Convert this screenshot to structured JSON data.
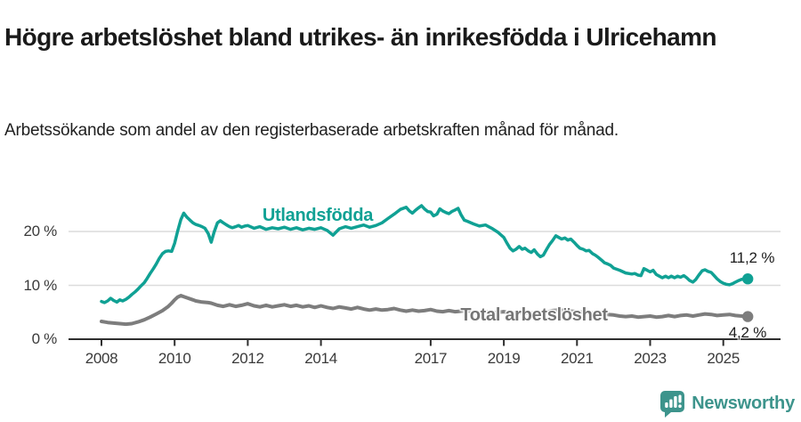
{
  "title": "Högre arbetslöshet bland utrikes- än inrikesfödda i Ulricehamn",
  "subtitle": "Arbetssökande som andel av den registerbaserade arbetskraften månad för månad.",
  "branding": {
    "logo_text": "Newsworthy",
    "logo_color": "#3d948c"
  },
  "chart_data": {
    "type": "line",
    "unit": "%",
    "grid": "horizontal-only",
    "xlim": [
      2007.1,
      2026.4
    ],
    "ylim": [
      0,
      27
    ],
    "x_ticks": [
      2008,
      2010,
      2012,
      2014,
      2017,
      2019,
      2021,
      2023,
      2025
    ],
    "x_tick_labels": [
      "2008",
      "2010",
      "2012",
      "2014",
      "2017",
      "2019",
      "2021",
      "2023",
      "2025"
    ],
    "y_ticks": [
      0,
      10,
      20
    ],
    "y_tick_labels": [
      "0 %",
      "10 %",
      "20 %"
    ],
    "axis_color": "#2e2e2e",
    "gridline_color": "#dcdcdc",
    "series": [
      {
        "name": "Utlandsfödda",
        "color": "#10a194",
        "line_width": 3.5,
        "end_value": 11.2,
        "end_label": "11,2 %",
        "points": [
          [
            2008.0,
            7.0
          ],
          [
            2008.08,
            6.8
          ],
          [
            2008.17,
            7.1
          ],
          [
            2008.25,
            7.6
          ],
          [
            2008.33,
            7.2
          ],
          [
            2008.42,
            6.9
          ],
          [
            2008.5,
            7.3
          ],
          [
            2008.58,
            7.1
          ],
          [
            2008.67,
            7.4
          ],
          [
            2008.75,
            7.8
          ],
          [
            2008.83,
            8.3
          ],
          [
            2008.92,
            8.8
          ],
          [
            2009.0,
            9.3
          ],
          [
            2009.08,
            9.9
          ],
          [
            2009.17,
            10.5
          ],
          [
            2009.25,
            11.3
          ],
          [
            2009.33,
            12.2
          ],
          [
            2009.42,
            13.1
          ],
          [
            2009.5,
            14.0
          ],
          [
            2009.58,
            15.0
          ],
          [
            2009.67,
            15.9
          ],
          [
            2009.75,
            16.3
          ],
          [
            2009.83,
            16.4
          ],
          [
            2009.92,
            16.3
          ],
          [
            2010.0,
            17.8
          ],
          [
            2010.08,
            20.0
          ],
          [
            2010.17,
            22.2
          ],
          [
            2010.25,
            23.4
          ],
          [
            2010.33,
            22.7
          ],
          [
            2010.42,
            22.1
          ],
          [
            2010.5,
            21.6
          ],
          [
            2010.58,
            21.3
          ],
          [
            2010.67,
            21.1
          ],
          [
            2010.75,
            20.9
          ],
          [
            2010.83,
            20.6
          ],
          [
            2010.92,
            19.6
          ],
          [
            2011.0,
            18.0
          ],
          [
            2011.08,
            19.9
          ],
          [
            2011.17,
            21.6
          ],
          [
            2011.25,
            22.0
          ],
          [
            2011.33,
            21.6
          ],
          [
            2011.42,
            21.2
          ],
          [
            2011.5,
            20.9
          ],
          [
            2011.58,
            20.7
          ],
          [
            2011.67,
            20.9
          ],
          [
            2011.75,
            21.1
          ],
          [
            2011.83,
            20.8
          ],
          [
            2011.92,
            21.0
          ],
          [
            2012.0,
            21.1
          ],
          [
            2012.17,
            20.6
          ],
          [
            2012.33,
            20.9
          ],
          [
            2012.5,
            20.4
          ],
          [
            2012.67,
            20.7
          ],
          [
            2012.83,
            20.5
          ],
          [
            2013.0,
            20.8
          ],
          [
            2013.17,
            20.4
          ],
          [
            2013.33,
            20.7
          ],
          [
            2013.5,
            20.3
          ],
          [
            2013.67,
            20.6
          ],
          [
            2013.83,
            20.4
          ],
          [
            2014.0,
            20.7
          ],
          [
            2014.17,
            20.2
          ],
          [
            2014.33,
            19.3
          ],
          [
            2014.5,
            20.5
          ],
          [
            2014.67,
            20.9
          ],
          [
            2014.83,
            20.6
          ],
          [
            2015.0,
            20.9
          ],
          [
            2015.17,
            21.2
          ],
          [
            2015.33,
            20.8
          ],
          [
            2015.5,
            21.1
          ],
          [
            2015.67,
            21.6
          ],
          [
            2015.83,
            22.4
          ],
          [
            2016.0,
            23.2
          ],
          [
            2016.17,
            24.1
          ],
          [
            2016.33,
            24.5
          ],
          [
            2016.42,
            23.8
          ],
          [
            2016.5,
            23.4
          ],
          [
            2016.58,
            23.9
          ],
          [
            2016.67,
            24.4
          ],
          [
            2016.75,
            24.8
          ],
          [
            2016.83,
            24.2
          ],
          [
            2016.92,
            23.7
          ],
          [
            2017.0,
            23.6
          ],
          [
            2017.08,
            22.9
          ],
          [
            2017.17,
            23.2
          ],
          [
            2017.25,
            24.2
          ],
          [
            2017.33,
            23.8
          ],
          [
            2017.42,
            23.5
          ],
          [
            2017.5,
            23.3
          ],
          [
            2017.58,
            23.7
          ],
          [
            2017.67,
            24.0
          ],
          [
            2017.75,
            24.3
          ],
          [
            2017.83,
            23.1
          ],
          [
            2017.92,
            22.1
          ],
          [
            2018.0,
            21.9
          ],
          [
            2018.17,
            21.4
          ],
          [
            2018.33,
            21.0
          ],
          [
            2018.5,
            21.2
          ],
          [
            2018.67,
            20.6
          ],
          [
            2018.83,
            19.9
          ],
          [
            2019.0,
            18.9
          ],
          [
            2019.08,
            17.9
          ],
          [
            2019.17,
            16.9
          ],
          [
            2019.25,
            16.4
          ],
          [
            2019.33,
            16.7
          ],
          [
            2019.42,
            17.2
          ],
          [
            2019.5,
            16.7
          ],
          [
            2019.58,
            16.9
          ],
          [
            2019.67,
            16.4
          ],
          [
            2019.75,
            16.1
          ],
          [
            2019.83,
            16.6
          ],
          [
            2019.92,
            15.8
          ],
          [
            2020.0,
            15.3
          ],
          [
            2020.08,
            15.6
          ],
          [
            2020.17,
            16.7
          ],
          [
            2020.25,
            17.6
          ],
          [
            2020.33,
            18.3
          ],
          [
            2020.42,
            19.2
          ],
          [
            2020.5,
            18.9
          ],
          [
            2020.58,
            18.6
          ],
          [
            2020.67,
            18.8
          ],
          [
            2020.75,
            18.4
          ],
          [
            2020.83,
            18.6
          ],
          [
            2020.92,
            18.0
          ],
          [
            2021.0,
            17.4
          ],
          [
            2021.08,
            16.9
          ],
          [
            2021.17,
            16.7
          ],
          [
            2021.25,
            16.4
          ],
          [
            2021.33,
            16.5
          ],
          [
            2021.42,
            15.9
          ],
          [
            2021.5,
            15.6
          ],
          [
            2021.58,
            15.2
          ],
          [
            2021.67,
            14.7
          ],
          [
            2021.75,
            14.2
          ],
          [
            2021.83,
            14.0
          ],
          [
            2021.92,
            13.7
          ],
          [
            2022.0,
            13.2
          ],
          [
            2022.17,
            12.8
          ],
          [
            2022.33,
            12.3
          ],
          [
            2022.5,
            12.1
          ],
          [
            2022.58,
            12.2
          ],
          [
            2022.67,
            11.9
          ],
          [
            2022.75,
            11.8
          ],
          [
            2022.83,
            13.1
          ],
          [
            2022.92,
            12.8
          ],
          [
            2023.0,
            12.5
          ],
          [
            2023.08,
            12.8
          ],
          [
            2023.17,
            12.0
          ],
          [
            2023.25,
            11.7
          ],
          [
            2023.33,
            11.4
          ],
          [
            2023.42,
            11.7
          ],
          [
            2023.5,
            11.4
          ],
          [
            2023.58,
            11.7
          ],
          [
            2023.67,
            11.4
          ],
          [
            2023.75,
            11.7
          ],
          [
            2023.83,
            11.5
          ],
          [
            2023.92,
            11.8
          ],
          [
            2024.0,
            11.4
          ],
          [
            2024.08,
            10.9
          ],
          [
            2024.17,
            10.6
          ],
          [
            2024.25,
            11.1
          ],
          [
            2024.33,
            11.9
          ],
          [
            2024.42,
            12.7
          ],
          [
            2024.5,
            12.9
          ],
          [
            2024.58,
            12.6
          ],
          [
            2024.67,
            12.4
          ],
          [
            2024.75,
            11.8
          ],
          [
            2024.83,
            11.2
          ],
          [
            2024.92,
            10.7
          ],
          [
            2025.0,
            10.4
          ],
          [
            2025.08,
            10.2
          ],
          [
            2025.17,
            10.1
          ],
          [
            2025.25,
            10.3
          ],
          [
            2025.33,
            10.6
          ],
          [
            2025.42,
            10.9
          ],
          [
            2025.5,
            11.1
          ],
          [
            2025.67,
            11.2
          ]
        ]
      },
      {
        "name": "Total arbetslöshet",
        "color": "#7d7d7d",
        "line_width": 4,
        "end_value": 4.2,
        "end_label": "4,2 %",
        "points": [
          [
            2008.0,
            3.3
          ],
          [
            2008.17,
            3.1
          ],
          [
            2008.33,
            3.0
          ],
          [
            2008.5,
            2.9
          ],
          [
            2008.67,
            2.8
          ],
          [
            2008.83,
            2.9
          ],
          [
            2009.0,
            3.2
          ],
          [
            2009.17,
            3.6
          ],
          [
            2009.33,
            4.1
          ],
          [
            2009.5,
            4.7
          ],
          [
            2009.67,
            5.3
          ],
          [
            2009.83,
            6.1
          ],
          [
            2009.92,
            6.7
          ],
          [
            2010.0,
            7.3
          ],
          [
            2010.08,
            7.8
          ],
          [
            2010.17,
            8.1
          ],
          [
            2010.25,
            7.9
          ],
          [
            2010.33,
            7.7
          ],
          [
            2010.5,
            7.3
          ],
          [
            2010.58,
            7.1
          ],
          [
            2010.75,
            6.9
          ],
          [
            2010.92,
            6.8
          ],
          [
            2011.0,
            6.7
          ],
          [
            2011.17,
            6.3
          ],
          [
            2011.33,
            6.1
          ],
          [
            2011.5,
            6.4
          ],
          [
            2011.67,
            6.1
          ],
          [
            2011.83,
            6.3
          ],
          [
            2012.0,
            6.6
          ],
          [
            2012.17,
            6.2
          ],
          [
            2012.33,
            6.0
          ],
          [
            2012.5,
            6.3
          ],
          [
            2012.67,
            6.0
          ],
          [
            2012.83,
            6.2
          ],
          [
            2013.0,
            6.4
          ],
          [
            2013.17,
            6.1
          ],
          [
            2013.33,
            6.3
          ],
          [
            2013.5,
            6.0
          ],
          [
            2013.67,
            6.2
          ],
          [
            2013.83,
            5.9
          ],
          [
            2014.0,
            6.2
          ],
          [
            2014.17,
            5.9
          ],
          [
            2014.33,
            5.7
          ],
          [
            2014.5,
            6.0
          ],
          [
            2014.67,
            5.8
          ],
          [
            2014.83,
            5.6
          ],
          [
            2015.0,
            5.9
          ],
          [
            2015.17,
            5.6
          ],
          [
            2015.33,
            5.4
          ],
          [
            2015.5,
            5.6
          ],
          [
            2015.67,
            5.4
          ],
          [
            2015.83,
            5.5
          ],
          [
            2016.0,
            5.7
          ],
          [
            2016.17,
            5.4
          ],
          [
            2016.33,
            5.2
          ],
          [
            2016.5,
            5.4
          ],
          [
            2016.67,
            5.2
          ],
          [
            2016.83,
            5.3
          ],
          [
            2017.0,
            5.5
          ],
          [
            2017.17,
            5.2
          ],
          [
            2017.33,
            5.1
          ],
          [
            2017.5,
            5.3
          ],
          [
            2017.67,
            5.1
          ],
          [
            2017.83,
            5.2
          ],
          [
            2018.0,
            5.3
          ],
          [
            2018.17,
            5.0
          ],
          [
            2018.33,
            4.9
          ],
          [
            2018.5,
            5.1
          ],
          [
            2018.67,
            4.9
          ],
          [
            2018.83,
            5.0
          ],
          [
            2019.0,
            5.1
          ],
          [
            2019.17,
            4.9
          ],
          [
            2019.33,
            4.8
          ],
          [
            2019.5,
            5.0
          ],
          [
            2019.67,
            4.8
          ],
          [
            2019.83,
            4.9
          ],
          [
            2020.0,
            4.8
          ],
          [
            2020.17,
            5.0
          ],
          [
            2020.33,
            5.3
          ],
          [
            2020.5,
            5.4
          ],
          [
            2020.67,
            5.3
          ],
          [
            2020.83,
            5.2
          ],
          [
            2021.0,
            5.1
          ],
          [
            2021.17,
            5.0
          ],
          [
            2021.33,
            4.9
          ],
          [
            2021.5,
            4.8
          ],
          [
            2021.67,
            4.7
          ],
          [
            2021.83,
            4.6
          ],
          [
            2022.0,
            4.5
          ],
          [
            2022.17,
            4.3
          ],
          [
            2022.33,
            4.2
          ],
          [
            2022.5,
            4.3
          ],
          [
            2022.67,
            4.1
          ],
          [
            2022.83,
            4.2
          ],
          [
            2023.0,
            4.3
          ],
          [
            2023.17,
            4.1
          ],
          [
            2023.33,
            4.2
          ],
          [
            2023.5,
            4.4
          ],
          [
            2023.67,
            4.2
          ],
          [
            2023.83,
            4.4
          ],
          [
            2024.0,
            4.5
          ],
          [
            2024.17,
            4.3
          ],
          [
            2024.33,
            4.5
          ],
          [
            2024.5,
            4.7
          ],
          [
            2024.67,
            4.6
          ],
          [
            2024.83,
            4.4
          ],
          [
            2025.0,
            4.5
          ],
          [
            2025.17,
            4.6
          ],
          [
            2025.33,
            4.4
          ],
          [
            2025.5,
            4.3
          ],
          [
            2025.67,
            4.2
          ]
        ]
      }
    ]
  }
}
